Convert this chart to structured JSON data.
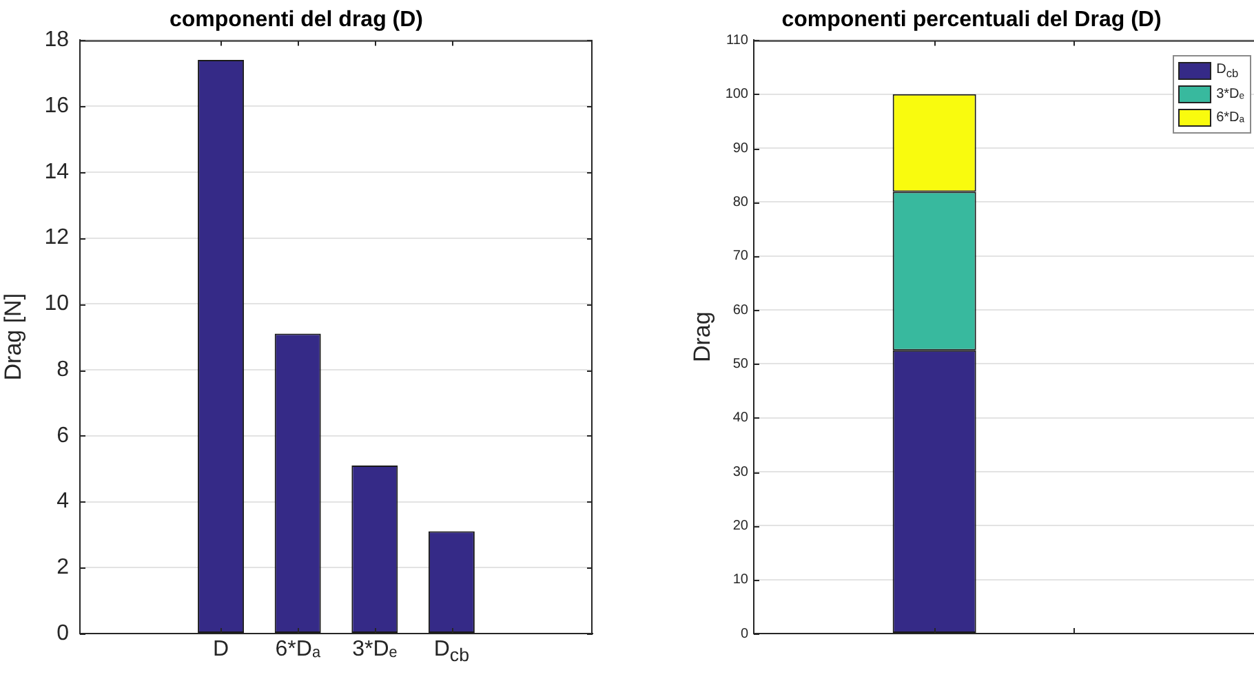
{
  "chart_data": [
    {
      "type": "bar",
      "title": "componenti del drag (D)",
      "ylabel": "Drag [N]",
      "categories": [
        "D",
        "6*Dₐ",
        "3*Dₑ",
        "D$_{cb}$"
      ],
      "values": [
        17.4,
        9.1,
        5.1,
        3.1
      ],
      "color": "#352a87",
      "ylim": [
        0,
        18
      ],
      "yticks": [
        0,
        2,
        4,
        6,
        8,
        10,
        12,
        14,
        16,
        18
      ],
      "grid": "y"
    },
    {
      "type": "bar",
      "title": "componenti percentuali del Drag (D)",
      "ylabel": "Drag",
      "categories": [
        null,
        null
      ],
      "stacked": true,
      "series": [
        {
          "name": "D$_{cb}$",
          "color": "#352a87",
          "values": [
            52.5,
            0
          ]
        },
        {
          "name": "3*Dₑ",
          "color": "#38b99e",
          "values": [
            29.4,
            0
          ]
        },
        {
          "name": "6*Dₐ",
          "color": "#f9fb0e",
          "values": [
            18.1,
            0
          ]
        }
      ],
      "ylim": [
        0,
        110
      ],
      "yticks": [
        0,
        10,
        20,
        30,
        40,
        50,
        60,
        70,
        80,
        90,
        100,
        110
      ],
      "grid": "y",
      "legend": "top right",
      "tick_labels": "y"
    }
  ]
}
